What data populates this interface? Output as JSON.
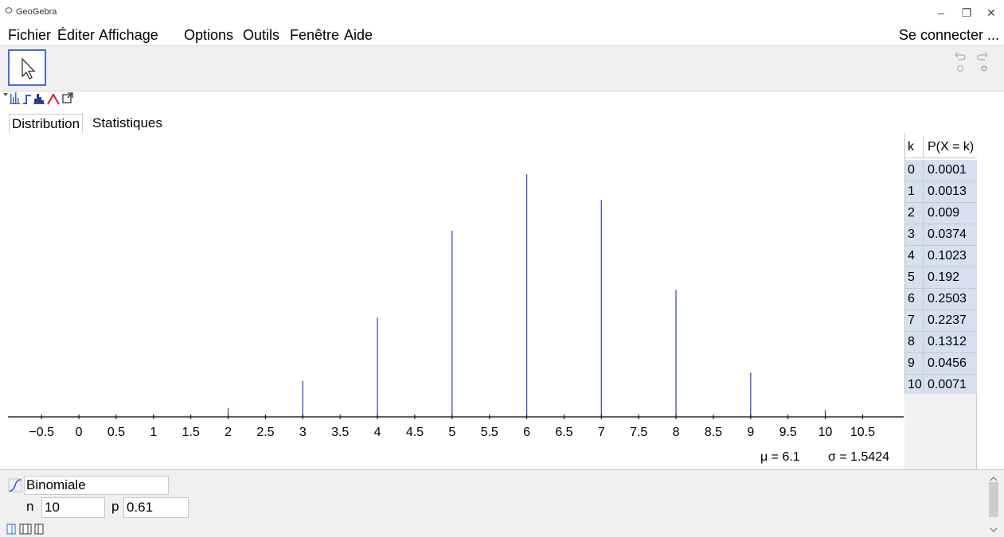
{
  "window": {
    "title": "GeoGebra",
    "minimize": "–",
    "maximize": "❐",
    "close": "✕"
  },
  "menubar": {
    "items": [
      "Fichier",
      "Éditer",
      "Affichage",
      "Options",
      "Outils",
      "Fenêtre",
      "Aide"
    ],
    "signin": "Se connecter ..."
  },
  "toolbar": {
    "move_tool_icon": "arrow-cursor-icon",
    "undo_icon": "undo-icon",
    "redo_icon": "redo-icon",
    "help_icon": "help-icon",
    "settings_icon": "gear-icon"
  },
  "tabs": {
    "distribution": "Distribution",
    "statistics": "Statistiques"
  },
  "stats": {
    "mean": "μ = 6.1",
    "sd": "σ = 1.5424"
  },
  "table": {
    "header_k": "k",
    "header_p": "P(X = k)",
    "rows": [
      {
        "k": "0",
        "p": "0.0001"
      },
      {
        "k": "1",
        "p": "0.0013"
      },
      {
        "k": "2",
        "p": "0.009"
      },
      {
        "k": "3",
        "p": "0.0374"
      },
      {
        "k": "4",
        "p": "0.1023"
      },
      {
        "k": "5",
        "p": "0.192"
      },
      {
        "k": "6",
        "p": "0.2503"
      },
      {
        "k": "7",
        "p": "0.2237"
      },
      {
        "k": "8",
        "p": "0.1312"
      },
      {
        "k": "9",
        "p": "0.0456"
      },
      {
        "k": "10",
        "p": "0.0071"
      }
    ]
  },
  "distribution": {
    "selected": "Binomiale",
    "n_label": "n",
    "n_value": "10",
    "p_label": "p",
    "p_value": "0.61"
  },
  "chart_data": {
    "type": "bar",
    "x": [
      0,
      1,
      2,
      3,
      4,
      5,
      6,
      7,
      8,
      9,
      10
    ],
    "values": [
      0.0001,
      0.0013,
      0.009,
      0.0374,
      0.1023,
      0.192,
      0.2503,
      0.2237,
      0.1312,
      0.0456,
      0.0071
    ],
    "xlim": [
      -0.95,
      11.05
    ],
    "ylim": [
      0,
      0.27
    ],
    "tick_labels": [
      "−0.5",
      "0",
      "0.5",
      "1",
      "1.5",
      "2",
      "2.5",
      "3",
      "3.5",
      "4",
      "4.5",
      "5",
      "5.5",
      "6",
      "6.5",
      "7",
      "7.5",
      "8",
      "8.5",
      "9",
      "9.5",
      "10",
      "10.5"
    ],
    "ticks": [
      -0.5,
      0,
      0.5,
      1,
      1.5,
      2,
      2.5,
      3,
      3.5,
      4,
      4.5,
      5,
      5.5,
      6,
      6.5,
      7,
      7.5,
      8,
      8.5,
      9,
      9.5,
      10,
      10.5
    ],
    "bar_color": "#3a50b8",
    "grid": false,
    "title": "",
    "xlabel": "",
    "ylabel": ""
  }
}
